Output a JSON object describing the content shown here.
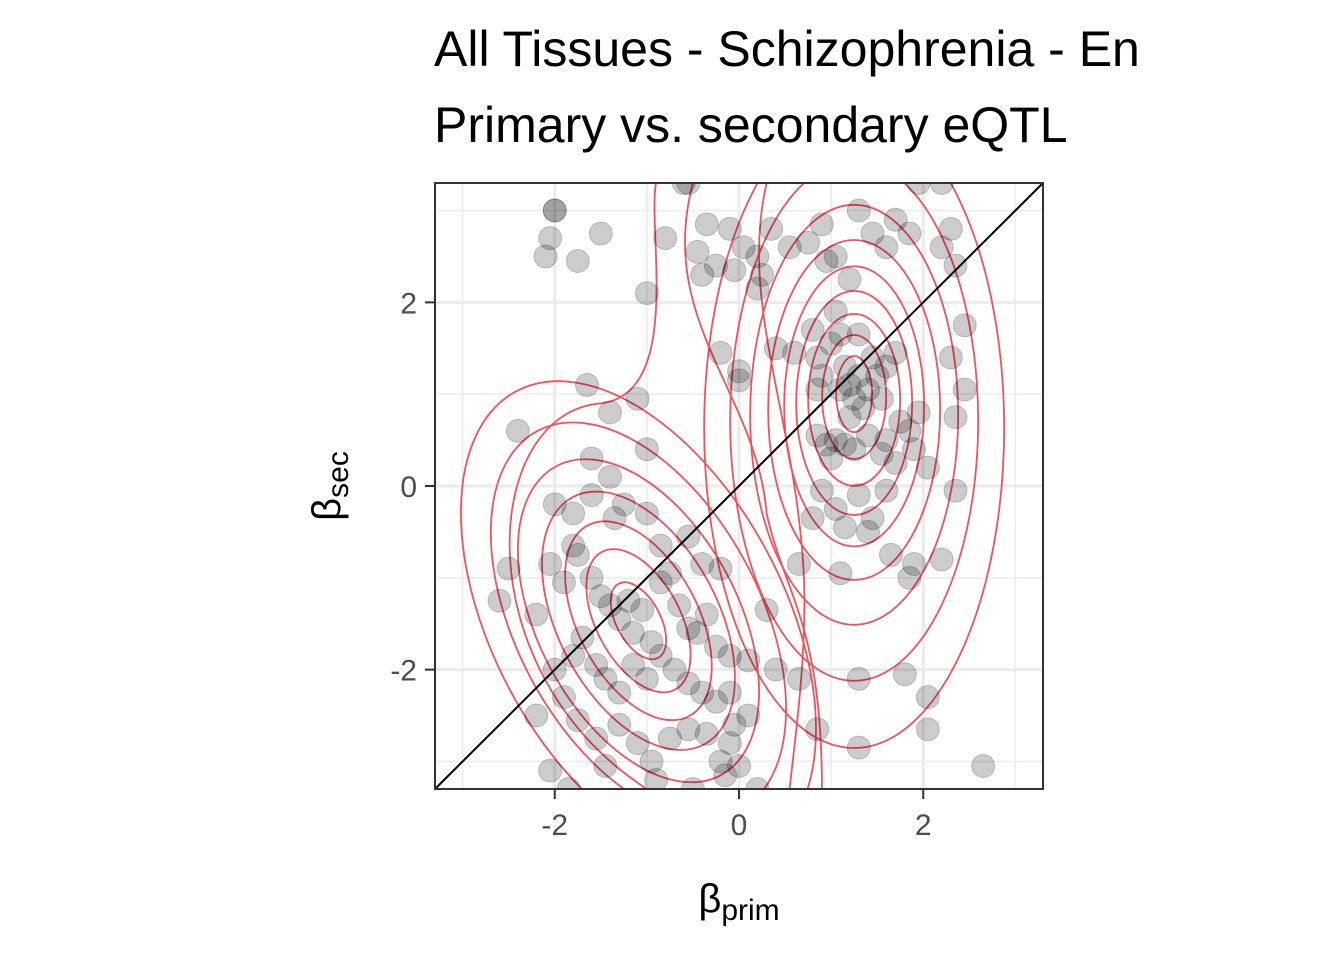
{
  "chart_data": {
    "type": "scatter",
    "title": "All Tissues - Schizophrenia - En",
    "subtitle": "Primary vs. secondary eQTL",
    "xlabel": {
      "symbol": "β",
      "subscript": "prim"
    },
    "ylabel": {
      "symbol": "β",
      "subscript": "sec"
    },
    "xlim": [
      -3.3,
      3.3
    ],
    "ylim": [
      -3.3,
      3.3
    ],
    "x_ticks": [
      -2,
      0,
      2
    ],
    "y_ticks": [
      -2,
      0,
      2
    ],
    "x_tick_labels": [
      "-2",
      "0",
      "2"
    ],
    "y_tick_labels": [
      "-2",
      "0",
      "2"
    ],
    "grid": true,
    "reference_line": "y = x",
    "colors": {
      "points": "#000000",
      "contours": "#f0525c",
      "reference_line": "#000000",
      "grid": "#ebebeb"
    },
    "contour_centers": [
      {
        "x": 1.25,
        "y": 1.05
      },
      {
        "x": -1.2,
        "y": -1.25
      }
    ],
    "points": [
      [
        -2.0,
        3.0
      ],
      [
        -2.0,
        3.0
      ],
      [
        -2.05,
        2.7
      ],
      [
        -2.1,
        2.5
      ],
      [
        -1.75,
        2.45
      ],
      [
        -1.5,
        2.75
      ],
      [
        -0.8,
        2.7
      ],
      [
        -0.55,
        3.3
      ],
      [
        -0.6,
        3.3
      ],
      [
        -0.35,
        2.85
      ],
      [
        -0.45,
        2.55
      ],
      [
        -0.25,
        2.4
      ],
      [
        -0.1,
        2.8
      ],
      [
        -0.05,
        2.35
      ],
      [
        0.05,
        2.6
      ],
      [
        0.2,
        2.5
      ],
      [
        0.25,
        2.3
      ],
      [
        0.2,
        2.15
      ],
      [
        0.35,
        2.8
      ],
      [
        0.55,
        2.6
      ],
      [
        0.75,
        2.65
      ],
      [
        0.9,
        2.85
      ],
      [
        0.95,
        2.45
      ],
      [
        1.05,
        2.5
      ],
      [
        1.2,
        2.25
      ],
      [
        1.3,
        3.0
      ],
      [
        1.45,
        2.75
      ],
      [
        1.6,
        2.6
      ],
      [
        1.7,
        2.9
      ],
      [
        1.85,
        2.75
      ],
      [
        1.95,
        3.3
      ],
      [
        2.2,
        3.3
      ],
      [
        2.3,
        2.8
      ],
      [
        2.2,
        2.6
      ],
      [
        2.35,
        2.4
      ],
      [
        2.45,
        1.75
      ],
      [
        2.3,
        1.4
      ],
      [
        2.45,
        1.05
      ],
      [
        2.35,
        0.75
      ],
      [
        2.35,
        -0.05
      ],
      [
        2.2,
        -0.8
      ],
      [
        -1.0,
        2.1
      ],
      [
        -0.4,
        2.3
      ],
      [
        -0.2,
        1.45
      ],
      [
        0.0,
        1.15
      ],
      [
        0.0,
        1.25
      ],
      [
        0.4,
        1.5
      ],
      [
        0.6,
        1.45
      ],
      [
        0.8,
        1.7
      ],
      [
        0.85,
        1.4
      ],
      [
        0.9,
        1.2
      ],
      [
        0.85,
        1.05
      ],
      [
        1.0,
        1.55
      ],
      [
        1.05,
        1.9
      ],
      [
        1.1,
        1.65
      ],
      [
        1.15,
        1.3
      ],
      [
        1.2,
        1.1
      ],
      [
        1.25,
        0.95
      ],
      [
        1.3,
        1.2
      ],
      [
        1.35,
        0.85
      ],
      [
        1.4,
        1.05
      ],
      [
        1.45,
        1.4
      ],
      [
        1.5,
        1.2
      ],
      [
        1.55,
        0.95
      ],
      [
        1.6,
        1.3
      ],
      [
        1.7,
        1.45
      ],
      [
        1.3,
        1.65
      ],
      [
        1.1,
        1.05
      ],
      [
        1.2,
        0.75
      ],
      [
        1.05,
        0.5
      ],
      [
        0.95,
        0.45
      ],
      [
        0.85,
        0.55
      ],
      [
        1.0,
        0.3
      ],
      [
        1.15,
        0.45
      ],
      [
        1.25,
        0.4
      ],
      [
        1.4,
        0.55
      ],
      [
        1.55,
        0.35
      ],
      [
        1.7,
        0.25
      ],
      [
        1.9,
        0.4
      ],
      [
        2.05,
        0.2
      ],
      [
        1.85,
        0.6
      ],
      [
        1.95,
        0.8
      ],
      [
        1.75,
        0.7
      ],
      [
        1.6,
        0.5
      ],
      [
        0.9,
        -0.05
      ],
      [
        1.05,
        -0.25
      ],
      [
        1.3,
        -0.1
      ],
      [
        1.45,
        -0.35
      ],
      [
        1.6,
        -0.05
      ],
      [
        0.8,
        -0.35
      ],
      [
        1.15,
        -0.45
      ],
      [
        1.4,
        -0.5
      ],
      [
        0.65,
        -0.85
      ],
      [
        1.1,
        -0.95
      ],
      [
        1.65,
        -0.75
      ],
      [
        1.85,
        -1.0
      ],
      [
        1.9,
        -0.85
      ],
      [
        -2.4,
        0.6
      ],
      [
        -1.65,
        1.1
      ],
      [
        -1.4,
        0.8
      ],
      [
        -1.1,
        0.95
      ],
      [
        -1.0,
        0.4
      ],
      [
        -1.6,
        0.3
      ],
      [
        -1.4,
        0.1
      ],
      [
        -1.25,
        -0.2
      ],
      [
        -2.0,
        -0.2
      ],
      [
        -1.8,
        -0.3
      ],
      [
        -1.6,
        -0.1
      ],
      [
        -1.35,
        -0.35
      ],
      [
        -1.0,
        -0.3
      ],
      [
        -0.85,
        -0.65
      ],
      [
        -0.55,
        -0.55
      ],
      [
        -0.4,
        -0.85
      ],
      [
        -0.2,
        -0.9
      ],
      [
        -2.5,
        -0.9
      ],
      [
        -2.6,
        -1.25
      ],
      [
        -2.2,
        -1.4
      ],
      [
        -2.05,
        -0.85
      ],
      [
        -1.9,
        -1.05
      ],
      [
        -1.8,
        -0.65
      ],
      [
        -1.75,
        -0.75
      ],
      [
        -1.6,
        -1.0
      ],
      [
        -1.5,
        -1.2
      ],
      [
        -1.4,
        -1.3
      ],
      [
        -1.3,
        -1.45
      ],
      [
        -1.2,
        -1.25
      ],
      [
        -1.15,
        -1.6
      ],
      [
        -1.05,
        -1.35
      ],
      [
        -0.95,
        -1.7
      ],
      [
        -0.85,
        -1.05
      ],
      [
        -0.75,
        -0.95
      ],
      [
        -0.65,
        -1.3
      ],
      [
        -0.55,
        -1.55
      ],
      [
        -0.45,
        -1.6
      ],
      [
        -0.35,
        -1.4
      ],
      [
        -0.25,
        -1.75
      ],
      [
        -0.1,
        -1.85
      ],
      [
        0.1,
        -1.9
      ],
      [
        0.3,
        -1.35
      ],
      [
        -2.0,
        -2.0
      ],
      [
        -1.8,
        -1.85
      ],
      [
        -1.7,
        -1.65
      ],
      [
        -1.55,
        -1.95
      ],
      [
        -1.45,
        -2.1
      ],
      [
        -1.3,
        -2.25
      ],
      [
        -1.15,
        -1.95
      ],
      [
        -1.0,
        -2.1
      ],
      [
        -0.85,
        -1.85
      ],
      [
        -0.7,
        -2.0
      ],
      [
        -0.55,
        -2.15
      ],
      [
        -0.4,
        -2.25
      ],
      [
        -0.25,
        -2.35
      ],
      [
        -0.1,
        -2.25
      ],
      [
        -0.05,
        -2.6
      ],
      [
        -0.1,
        -2.8
      ],
      [
        0.1,
        -2.5
      ],
      [
        -1.9,
        -2.3
      ],
      [
        -1.75,
        -2.55
      ],
      [
        -1.55,
        -2.75
      ],
      [
        -1.3,
        -2.6
      ],
      [
        -1.1,
        -2.8
      ],
      [
        -0.95,
        -3.0
      ],
      [
        -0.75,
        -2.75
      ],
      [
        -0.55,
        -2.65
      ],
      [
        -0.35,
        -2.7
      ],
      [
        -0.15,
        -3.15
      ],
      [
        0.0,
        -3.05
      ],
      [
        0.2,
        -3.3
      ],
      [
        -2.2,
        -2.5
      ],
      [
        -2.05,
        -3.1
      ],
      [
        -1.85,
        -3.3
      ],
      [
        -1.45,
        -3.05
      ],
      [
        -0.9,
        -3.2
      ],
      [
        -0.5,
        -3.3
      ],
      [
        -0.2,
        -3.0
      ],
      [
        0.4,
        -2.0
      ],
      [
        0.65,
        -2.1
      ],
      [
        0.85,
        -2.65
      ],
      [
        1.3,
        -2.1
      ],
      [
        1.3,
        -2.85
      ],
      [
        1.8,
        -2.05
      ],
      [
        2.05,
        -2.3
      ],
      [
        2.05,
        -2.65
      ],
      [
        2.65,
        -3.05
      ]
    ]
  }
}
